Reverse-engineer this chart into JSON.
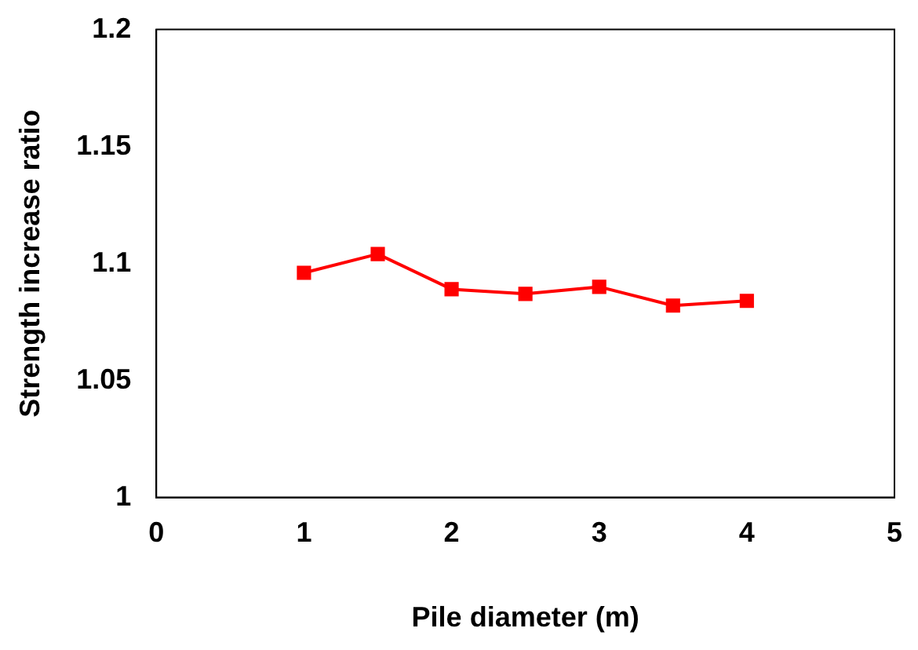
{
  "chart_data": {
    "type": "line",
    "xlabel": "Pile diameter (m)",
    "ylabel": "Strength increase ratio",
    "x": [
      1,
      1.5,
      2,
      2.5,
      3,
      3.5,
      4
    ],
    "series": [
      {
        "color": "#ff0000",
        "values": [
          1.096,
          1.104,
          1.089,
          1.087,
          1.09,
          1.082,
          1.084
        ]
      }
    ],
    "xlim": [
      0,
      5
    ],
    "xticks": [
      0,
      1,
      2,
      3,
      4,
      5
    ],
    "ylim": [
      1,
      1.2
    ],
    "yticks": [
      {
        "value": 1,
        "label": "1"
      },
      {
        "value": 1.05,
        "label": "1.05"
      },
      {
        "value": 1.1,
        "label": "1.1"
      },
      {
        "value": 1.15,
        "label": "1.15"
      },
      {
        "value": 1.2,
        "label": "1.2"
      }
    ],
    "grid": false,
    "legend": false,
    "marker": "square",
    "line_style": "solid"
  }
}
